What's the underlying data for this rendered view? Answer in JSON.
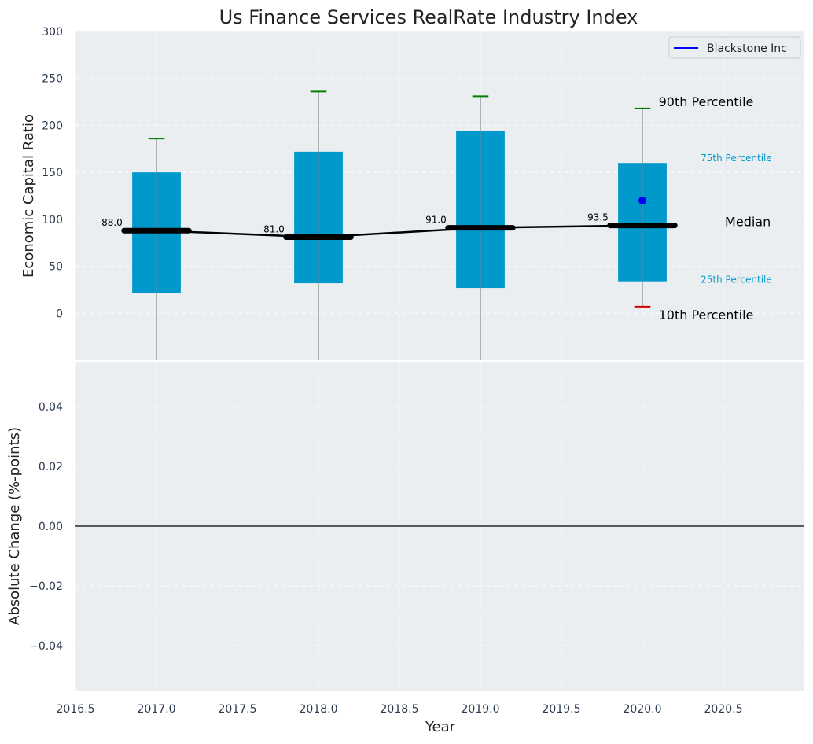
{
  "chart_data": [
    {
      "type": "box",
      "title": "Us Finance Services RealRate Industry Index",
      "ylabel": "Economic Capital Ratio",
      "xlim": [
        2016.5,
        2021.0
      ],
      "ylim": [
        -50,
        300
      ],
      "yticks": [
        0,
        50,
        100,
        150,
        200,
        250,
        300
      ],
      "grid": true,
      "legend": {
        "position": "top-right",
        "entries": [
          "Blackstone Inc"
        ]
      },
      "box_color": "#0099cc",
      "median_line_color": "#000000",
      "boxes": [
        {
          "x": 2017,
          "p10": -60,
          "p25": 22,
          "median": 88.0,
          "p75": 150,
          "p90": 186,
          "median_label": "88.0"
        },
        {
          "x": 2018,
          "p10": -60,
          "p25": 32,
          "median": 81.0,
          "p75": 172,
          "p90": 236,
          "median_label": "81.0"
        },
        {
          "x": 2019,
          "p10": -60,
          "p25": 27,
          "median": 91.0,
          "p75": 194,
          "p90": 231,
          "median_label": "91.0"
        },
        {
          "x": 2020,
          "p10": 7,
          "p25": 34,
          "median": 93.5,
          "p75": 160,
          "p90": 218,
          "median_label": "93.5"
        }
      ],
      "series": [
        {
          "name": "Blackstone Inc",
          "color": "#0000ff",
          "points": [
            {
              "x": 2020,
              "y": 120
            }
          ]
        }
      ],
      "annotations": {
        "p90": "90th Percentile",
        "p75": "75th Percentile",
        "median": "Median",
        "p25": "25th Percentile",
        "p10": "10th Percentile"
      }
    },
    {
      "type": "line",
      "ylabel": "Absolute Change (%-points)",
      "xlabel": "Year",
      "xlim": [
        2016.5,
        2021.0
      ],
      "xticks": [
        2016.5,
        2017.0,
        2017.5,
        2018.0,
        2018.5,
        2019.0,
        2019.5,
        2020.0,
        2020.5
      ],
      "ylim": [
        -0.055,
        0.055
      ],
      "yticks": [
        -0.04,
        -0.02,
        0.0,
        0.02,
        0.04
      ],
      "ytick_labels": [
        "−0.04",
        "−0.02",
        "0.00",
        "0.02",
        "0.04"
      ],
      "reference_line": 0.0,
      "grid": true
    }
  ]
}
